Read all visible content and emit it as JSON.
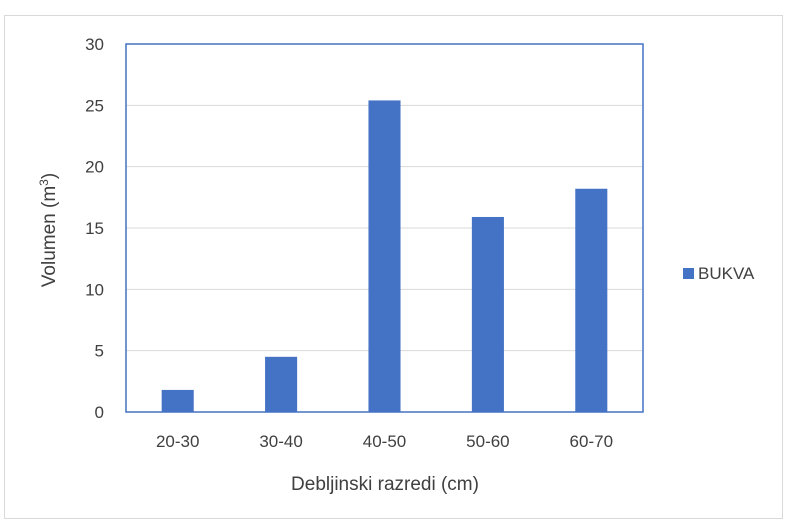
{
  "chart_data": {
    "type": "bar",
    "categories": [
      "20-30",
      "30-40",
      "40-50",
      "50-60",
      "60-70"
    ],
    "series": [
      {
        "name": "BUKVA",
        "values": [
          1.8,
          4.5,
          25.4,
          15.9,
          18.2
        ],
        "color": "#4472c4"
      }
    ],
    "xlabel": "Debljinski razredi (cm)",
    "ylabel_main": "Volumen (m",
    "ylabel_sup": "3",
    "ylabel_close": ")",
    "ylim": [
      0,
      30
    ],
    "yticks": [
      0,
      5,
      10,
      15,
      20,
      25,
      30
    ],
    "yticks_text": [
      "0",
      "5",
      "10",
      "15",
      "20",
      "25",
      "30"
    ],
    "grid": true,
    "legend_position": "right",
    "plot_border_color": "#4472c4",
    "grid_color": "#d9d9d9"
  }
}
